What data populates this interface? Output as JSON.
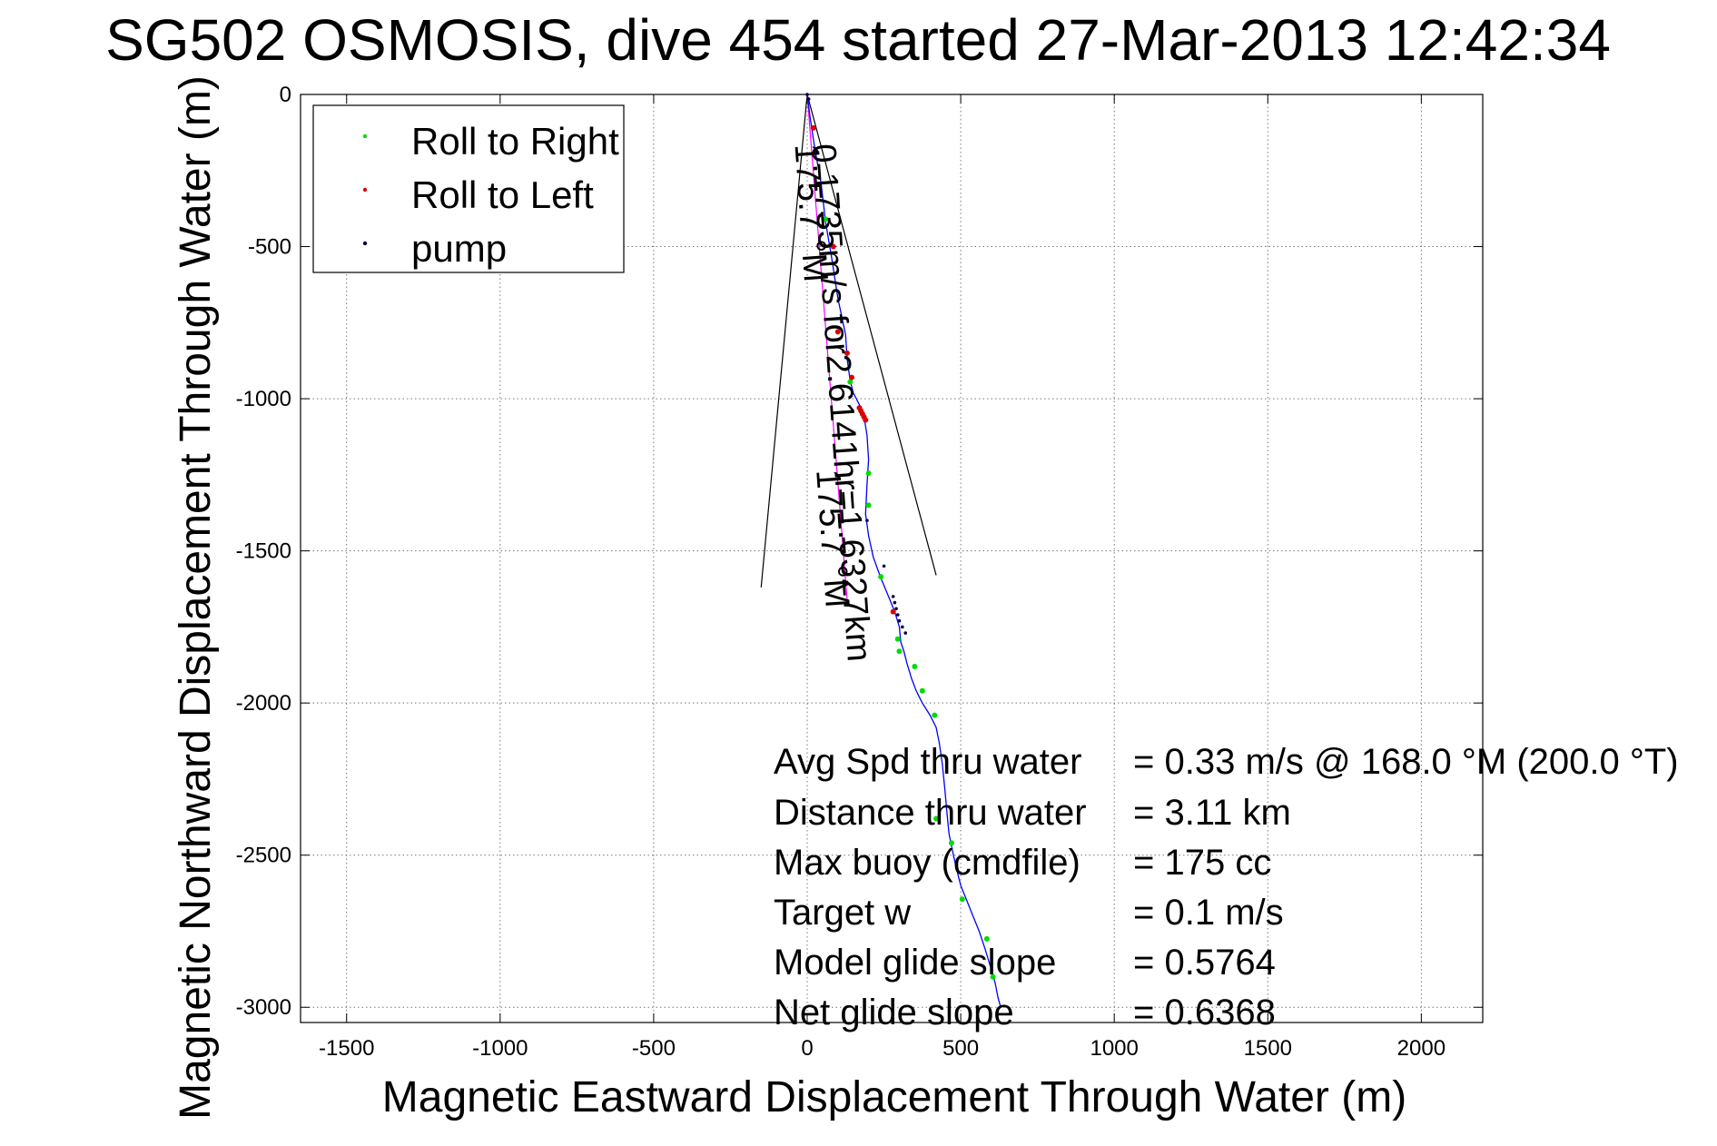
{
  "chart_data": {
    "type": "line",
    "title": "SG502 OSMOSIS, dive 454 started 27-Mar-2013 12:42:34",
    "xlabel": "Magnetic Eastward Displacement Through Water (m)",
    "ylabel": "Magnetic Northward Displacement Through Water (m)",
    "xlim": [
      -1650,
      2200
    ],
    "ylim": [
      -3050,
      0
    ],
    "xticks": [
      -1500,
      -1000,
      -500,
      0,
      500,
      1000,
      1500,
      2000
    ],
    "yticks": [
      0,
      -500,
      -1000,
      -1500,
      -2000,
      -2500,
      -3000
    ],
    "grid": true,
    "legend": {
      "placement": "top-left",
      "entries": [
        {
          "label": "Roll to Right",
          "color": "#00dd00"
        },
        {
          "label": "Roll to Left",
          "color": "#dd0000"
        },
        {
          "label": "pump",
          "color": "#000044"
        }
      ]
    },
    "track": {
      "color": "#0000ff",
      "x": [
        0,
        10,
        25,
        45,
        60,
        80,
        100,
        125,
        130,
        140,
        150,
        165,
        175,
        185,
        195,
        200,
        195,
        190,
        200,
        215,
        240,
        265,
        285,
        300,
        305,
        315,
        325,
        340,
        355,
        375,
        400,
        420,
        430,
        440,
        448,
        455,
        462,
        472,
        485,
        500,
        520,
        540,
        560,
        580,
        598,
        612,
        622,
        630
      ],
      "y": [
        0,
        -80,
        -180,
        -290,
        -420,
        -540,
        -670,
        -790,
        -870,
        -940,
        -980,
        -1010,
        -1030,
        -1060,
        -1120,
        -1200,
        -1280,
        -1380,
        -1450,
        -1520,
        -1590,
        -1650,
        -1700,
        -1750,
        -1800,
        -1830,
        -1870,
        -1920,
        -1960,
        -2000,
        -2040,
        -2080,
        -2130,
        -2200,
        -2280,
        -2360,
        -2430,
        -2480,
        -2540,
        -2600,
        -2650,
        -2700,
        -2750,
        -2810,
        -2870,
        -2920,
        -2970,
        -3000
      ]
    },
    "planned_track": {
      "color": "#ff00ff",
      "x": [
        0,
        130
      ],
      "y": [
        0,
        -1660
      ]
    },
    "roll_right": {
      "x": [
        60,
        140,
        200,
        200,
        240,
        295,
        300,
        350,
        375,
        415,
        420,
        470,
        505,
        585,
        605
      ],
      "y": [
        -410,
        -945,
        -1245,
        -1350,
        -1585,
        -1790,
        -1830,
        -1880,
        -1960,
        -2040,
        -2380,
        -2460,
        -2645,
        -2775,
        -2900
      ]
    },
    "roll_left": {
      "x": [
        20,
        85,
        100,
        130,
        145,
        170,
        175,
        180,
        185,
        190,
        280
      ],
      "y": [
        -110,
        -500,
        -780,
        -850,
        -930,
        -1030,
        -1040,
        -1050,
        -1060,
        -1070,
        -1700
      ]
    },
    "pump": {
      "x": [
        0,
        5,
        195,
        250,
        280,
        285,
        290,
        295,
        300,
        310,
        320
      ],
      "y": [
        0,
        -15,
        -1400,
        -1550,
        -1650,
        -1670,
        -1690,
        -1710,
        -1730,
        -1750,
        -1770
      ]
    },
    "cone_lines": [
      {
        "x": [
          0,
          -150
        ],
        "y": [
          0,
          -1620
        ]
      },
      {
        "x": [
          0,
          420
        ],
        "y": [
          0,
          -1580
        ]
      }
    ],
    "rotated_labels": [
      {
        "text": "0.1735m/s for2.6141hr=1.6327km",
        "anchor_x": 15,
        "anchor_y": -165
      },
      {
        "text": "175.7 °M",
        "anchor_x": -40,
        "anchor_y": -165
      },
      {
        "text": "175.7 °M",
        "anchor_x": 30,
        "anchor_y": -1235
      }
    ],
    "stats": [
      {
        "label": "Avg Spd thru water",
        "value": "=  0.33 m/s @ 168.0 °M (200.0 °T)"
      },
      {
        "label": "Distance thru water",
        "value": "=  3.11 km"
      },
      {
        "label": "Max buoy (cmdfile)",
        "value": "= 175 cc"
      },
      {
        "label": "Target w",
        "value": "= 0.1 m/s"
      },
      {
        "label": "Model glide slope",
        "value": "= 0.5764"
      },
      {
        "label": "Net glide slope",
        "value": "= 0.6368"
      }
    ]
  }
}
